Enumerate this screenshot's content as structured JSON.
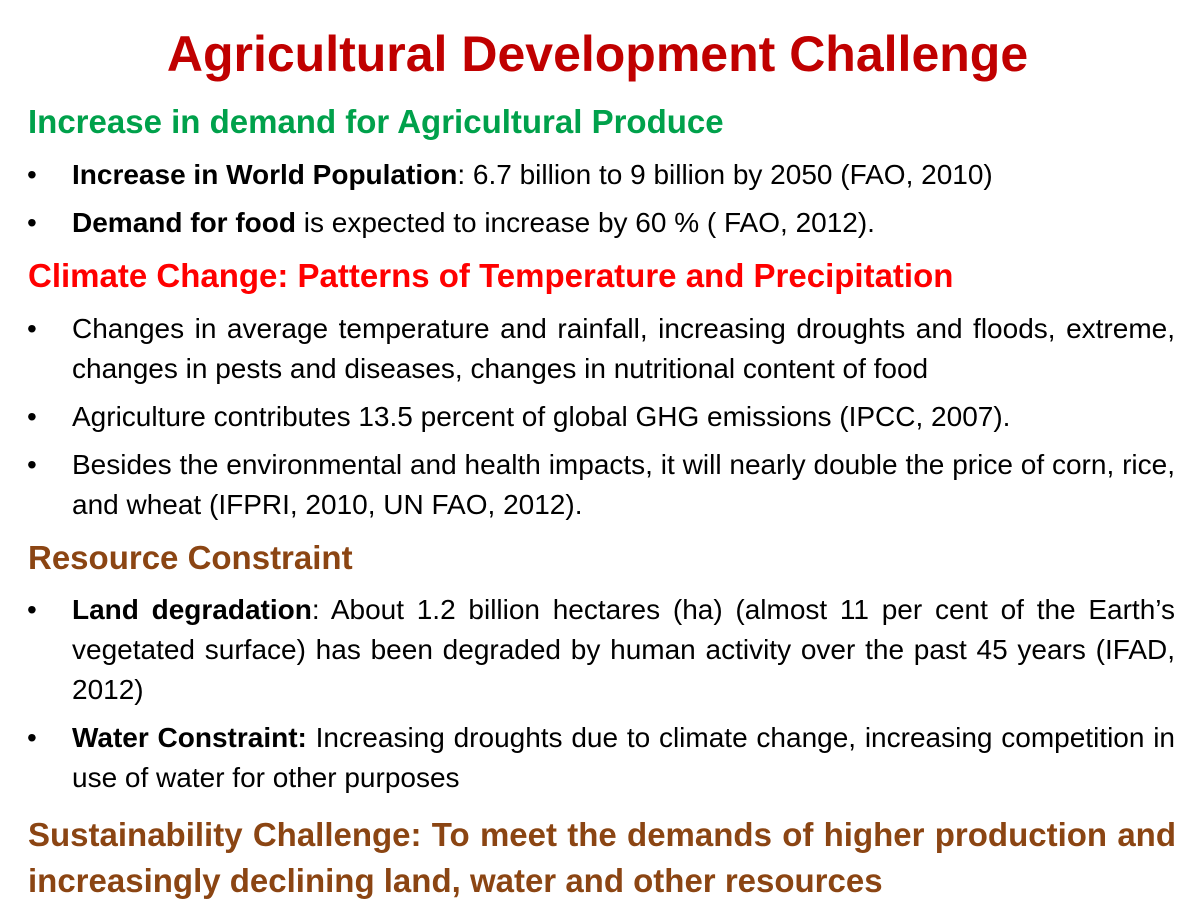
{
  "title": "Agricultural Development Challenge",
  "colors": {
    "title": "#c00000",
    "demand_heading": "#00a14b",
    "climate_heading": "#ff0000",
    "resource_heading": "#8b4513",
    "sustainability_heading": "#8b4513"
  },
  "bullet_glyph": "•",
  "sections": {
    "demand": {
      "heading": "Increase in demand for Agricultural Produce",
      "items": [
        {
          "lead": "Increase in World Population",
          "text": ": 6.7 billion to 9 billion by 2050 (FAO, 2010)"
        },
        {
          "lead": "Demand for food",
          "text": " is expected to increase by 60 % ( FAO, 2012)."
        }
      ]
    },
    "climate": {
      "heading": "Climate Change: Patterns of Temperature and Precipitation",
      "items": [
        {
          "text": "Changes in average temperature and rainfall, increasing droughts and floods, extreme, changes in pests and diseases, changes in nutritional content of food"
        },
        {
          "text": "Agriculture contributes 13.5 percent of global GHG emissions (IPCC, 2007)."
        },
        {
          "text": "Besides the environmental and health impacts, it will nearly double the price of corn, rice, and wheat (IFPRI, 2010, UN FAO, 2012)."
        }
      ]
    },
    "resource": {
      "heading": "Resource Constraint",
      "items": [
        {
          "lead": "Land degradation",
          "text": ": About 1.2 billion hectares (ha) (almost 11 per cent of the Earth’s vegetated surface) has been degraded by human activity over the past 45 years (IFAD, 2012)"
        },
        {
          "lead": "Water Constraint:",
          "text": " Increasing droughts due to climate change, increasing competition in use of water for other purposes"
        }
      ]
    },
    "sustainability": {
      "heading": "Sustainability Challenge: To meet the demands of higher production and increasingly declining land, water and other resources"
    }
  }
}
